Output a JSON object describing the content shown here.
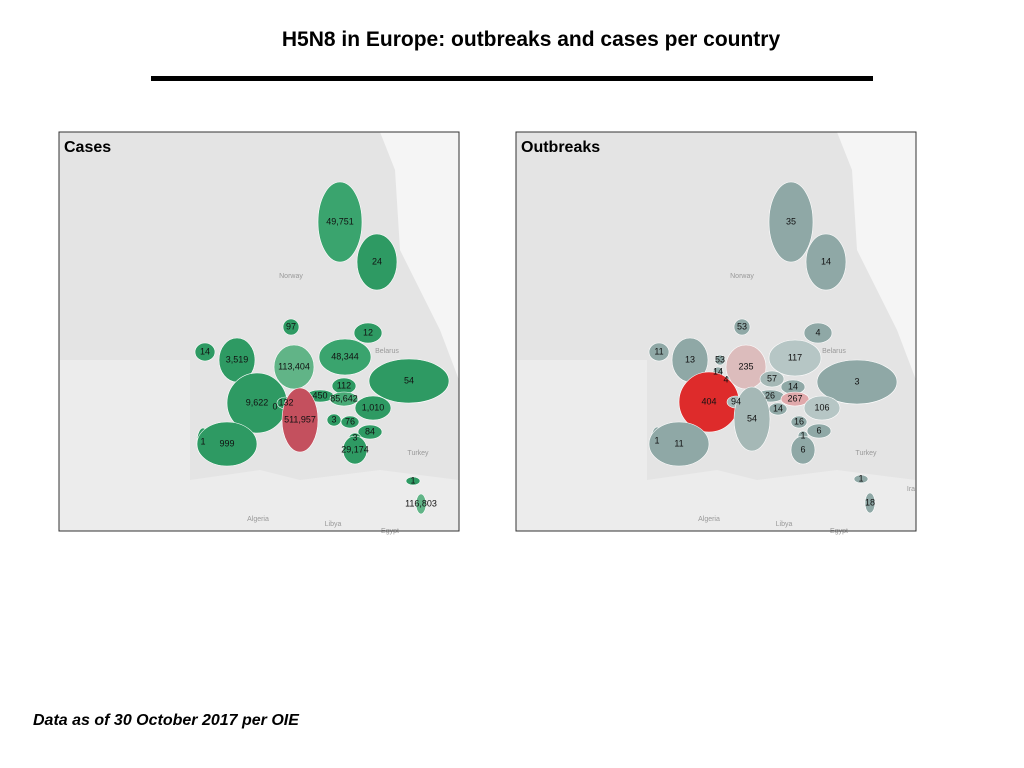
{
  "title": "H5N8 in Europe: outbreaks and cases per country",
  "footnote": "Data as of 30 October 2017 per OIE",
  "chart_data": [
    {
      "type": "map",
      "title": "Cases",
      "map_labels": [
        "Norway",
        "Belarus",
        "Turkey",
        "Algeria",
        "Libya",
        "Egypt"
      ],
      "regions": [
        {
          "value": 49751,
          "label": "49,751",
          "color": "#3aa46e"
        },
        {
          "value": 24,
          "color": "#2e9a63"
        },
        {
          "value": 97,
          "color": "#2e9a63"
        },
        {
          "value": 12,
          "color": "#2e9a63"
        },
        {
          "value": 14,
          "color": "#2e9a63"
        },
        {
          "value": 3519,
          "label": "3,519",
          "color": "#2e9a63"
        },
        {
          "value": 48344,
          "label": "48,344",
          "color": "#3aa46e"
        },
        {
          "value": 113404,
          "label": "113,404",
          "color": "#61b487"
        },
        {
          "value": 0,
          "color": "#2e9a63"
        },
        {
          "value": 112,
          "color": "#2e9a63"
        },
        {
          "value": 54,
          "color": "#2e9a63"
        },
        {
          "value": 9622,
          "label": "9,622",
          "color": "#2e9a63"
        },
        {
          "value": 132,
          "color": "#2e9a63"
        },
        {
          "value": 450,
          "color": "#2e9a63"
        },
        {
          "value": 85642,
          "label": "85,642",
          "color": "#48aa76"
        },
        {
          "value": 1010,
          "label": "1,010",
          "color": "#2e9a63"
        },
        {
          "value": 511957,
          "label": "511,957",
          "color": "#c4505e"
        },
        {
          "value": 3,
          "color": "#2e9a63"
        },
        {
          "value": 76,
          "color": "#2e9a63"
        },
        {
          "value": 84,
          "color": "#2e9a63"
        },
        {
          "value": 1,
          "color": "#2e9a63"
        },
        {
          "value": 999,
          "color": "#2e9a63"
        },
        {
          "value": 3,
          "color": "#2e9a63"
        },
        {
          "value": 29174,
          "label": "29,174",
          "color": "#2e9a63"
        },
        {
          "value": 1,
          "color": "#2e9a63"
        },
        {
          "value": 116803,
          "label": "116,803",
          "color": "#61b487"
        }
      ]
    },
    {
      "type": "map",
      "title": "Outbreaks",
      "map_labels": [
        "Norway",
        "Belarus",
        "Turkey",
        "Algeria",
        "Libya",
        "Egypt",
        "Ira"
      ],
      "regions": [
        {
          "value": 35,
          "color": "#8fa8a6"
        },
        {
          "value": 14,
          "color": "#8fa8a6"
        },
        {
          "value": 53,
          "color": "#8fa8a6"
        },
        {
          "value": 4,
          "color": "#8fa8a6"
        },
        {
          "value": 11,
          "color": "#8fa8a6"
        },
        {
          "value": 13,
          "color": "#8fa8a6"
        },
        {
          "value": 53,
          "color": "#8fa8a6"
        },
        {
          "value": 235,
          "color": "#dcbcbc"
        },
        {
          "value": 117,
          "color": "#b6c6c5"
        },
        {
          "value": 14,
          "color": "#8fa8a6"
        },
        {
          "value": 4,
          "color": "#8fa8a6"
        },
        {
          "value": 57,
          "color": "#a5b8b6"
        },
        {
          "value": 14,
          "color": "#8fa8a6"
        },
        {
          "value": 3,
          "color": "#8fa8a6"
        },
        {
          "value": 26,
          "color": "#8fa8a6"
        },
        {
          "value": 267,
          "color": "#e0a9ab"
        },
        {
          "value": 404,
          "color": "#de2b2b"
        },
        {
          "value": 94,
          "color": "#a5b8b6"
        },
        {
          "value": 106,
          "color": "#b6c6c5"
        },
        {
          "value": 14,
          "color": "#8fa8a6"
        },
        {
          "value": 54,
          "color": "#a5b8b6"
        },
        {
          "value": 16,
          "color": "#8fa8a6"
        },
        {
          "value": 6,
          "color": "#8fa8a6"
        },
        {
          "value": 1,
          "color": "#8fa8a6"
        },
        {
          "value": 11,
          "color": "#8fa8a6"
        },
        {
          "value": 1,
          "color": "#8fa8a6"
        },
        {
          "value": 6,
          "color": "#8fa8a6"
        },
        {
          "value": 1,
          "color": "#8fa8a6"
        },
        {
          "value": 18,
          "color": "#8fa8a6"
        }
      ]
    }
  ]
}
